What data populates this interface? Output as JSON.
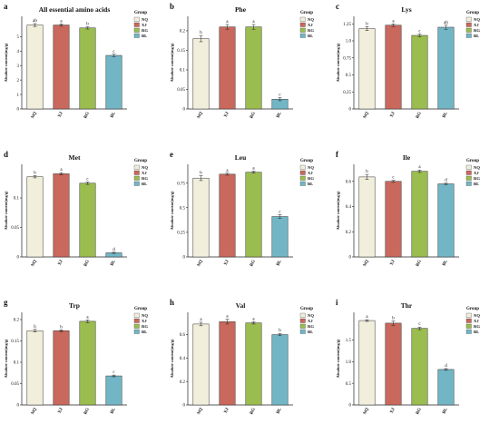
{
  "colors": {
    "NQ": "#f1efdb",
    "XJ": "#c9685c",
    "RG": "#9bbd4f",
    "BL": "#72b6c6"
  },
  "chart_data": [
    {
      "type": "bar",
      "panel": "a",
      "title": "All essential amino acids",
      "categories": [
        "NQ",
        "XJ",
        "RG",
        "BL"
      ],
      "values": [
        5.8,
        5.8,
        5.6,
        3.7
      ],
      "errors": [
        0.1,
        0.08,
        0.08,
        0.08
      ],
      "letters": [
        "ab",
        "a",
        "b",
        "c"
      ],
      "yticks": [
        0,
        1,
        2,
        3,
        4,
        5
      ],
      "ylim": [
        0,
        6.4
      ],
      "ylabel": "Absolute content(mg/g)",
      "legend_title": "Group",
      "legend": [
        "NQ",
        "XJ",
        "RG",
        "BL"
      ]
    },
    {
      "type": "bar",
      "panel": "b",
      "title": "Phe",
      "categories": [
        "NQ",
        "XJ",
        "RG",
        "BL"
      ],
      "values": [
        0.18,
        0.21,
        0.21,
        0.025
      ],
      "errors": [
        0.008,
        0.006,
        0.006,
        0.004
      ],
      "letters": [
        "b",
        "a",
        "a",
        "c"
      ],
      "yticks": [
        "0",
        "0.05",
        "0.1",
        "0.15",
        "0.2"
      ],
      "ylim": [
        0,
        0.237
      ],
      "ylabel": "Absolute content(mg/g)",
      "legend_title": "Group",
      "legend": [
        "NQ",
        "XJ",
        "RG",
        "BL"
      ]
    },
    {
      "type": "bar",
      "panel": "c",
      "title": "Lys",
      "categories": [
        "NQ",
        "XJ",
        "RG",
        "BL"
      ],
      "values": [
        1.18,
        1.23,
        1.08,
        1.2
      ],
      "errors": [
        0.03,
        0.02,
        0.02,
        0.03
      ],
      "letters": [
        "b",
        "a",
        "c",
        "ab"
      ],
      "yticks": [
        "0",
        "0.25",
        "0.5",
        "0.75",
        "1.0",
        "1.25"
      ],
      "ylim": [
        0,
        1.36
      ],
      "ylabel": "Absolute content(mg/g)",
      "legend_title": "Group",
      "legend": [
        "NQ",
        "XJ",
        "RG",
        "BL"
      ]
    },
    {
      "type": "bar",
      "panel": "d",
      "title": "Met",
      "categories": [
        "NQ",
        "XJ",
        "RG",
        "BL"
      ],
      "values": [
        0.136,
        0.141,
        0.125,
        0.007
      ],
      "errors": [
        0.002,
        0.002,
        0.002,
        0.001
      ],
      "letters": [
        "b",
        "a",
        "c",
        "d"
      ],
      "yticks": [
        "0",
        "0.05",
        "0.1"
      ],
      "ylim": [
        0,
        0.157
      ],
      "ylabel": "Absolute content(mg/g)",
      "legend_title": "Group",
      "legend": [
        "NQ",
        "XJ",
        "RG",
        "BL"
      ]
    },
    {
      "type": "bar",
      "panel": "e",
      "title": "Leu",
      "categories": [
        "NQ",
        "XJ",
        "RG",
        "BL"
      ],
      "values": [
        0.8,
        0.84,
        0.86,
        0.41
      ],
      "errors": [
        0.025,
        0.01,
        0.01,
        0.02
      ],
      "letters": [
        "b",
        "a",
        "a",
        "c"
      ],
      "yticks": [
        "0",
        "0.25",
        "0.5",
        "0.75"
      ],
      "ylim": [
        0,
        0.94
      ],
      "ylabel": "Absolute content(mg/g)",
      "legend_title": "Group",
      "legend": [
        "NQ",
        "XJ",
        "RG",
        "BL"
      ]
    },
    {
      "type": "bar",
      "panel": "f",
      "title": "Ile",
      "categories": [
        "NQ",
        "XJ",
        "RG",
        "BL"
      ],
      "values": [
        0.635,
        0.6,
        0.68,
        0.58
      ],
      "errors": [
        0.02,
        0.008,
        0.01,
        0.006
      ],
      "letters": [
        "b",
        "c",
        "a",
        "d"
      ],
      "yticks": [
        "0",
        "0.2",
        "0.4",
        "0.6"
      ],
      "ylim": [
        0,
        0.735
      ],
      "ylabel": "Absolute content(mg/g)",
      "legend_title": "Group",
      "legend": [
        "NQ",
        "XJ",
        "RG",
        "BL"
      ]
    },
    {
      "type": "bar",
      "panel": "g",
      "title": "Trp",
      "categories": [
        "NQ",
        "XJ",
        "RG",
        "BL"
      ],
      "values": [
        0.174,
        0.174,
        0.196,
        0.068
      ],
      "errors": [
        0.003,
        0.002,
        0.003,
        0.002
      ],
      "letters": [
        "b",
        "b",
        "a",
        "c"
      ],
      "yticks": [
        "0",
        "0.05",
        "0.1",
        "0.15",
        "0.2"
      ],
      "ylim": [
        0,
        0.217
      ],
      "ylabel": "Absolute content(mg/g)",
      "legend_title": "Group",
      "legend": [
        "NQ",
        "XJ",
        "RG",
        "BL"
      ]
    },
    {
      "type": "bar",
      "panel": "h",
      "title": "Val",
      "categories": [
        "NQ",
        "XJ",
        "RG",
        "BL"
      ],
      "values": [
        0.69,
        0.71,
        0.7,
        0.6
      ],
      "errors": [
        0.015,
        0.02,
        0.01,
        0.01
      ],
      "letters": [
        "a",
        "a",
        "a",
        "b"
      ],
      "yticks": [
        "0",
        "0.2",
        "0.4",
        "0.6"
      ],
      "ylim": [
        0,
        0.79
      ],
      "ylabel": "Absolute content(mg/g)",
      "legend_title": "Group",
      "legend": [
        "NQ",
        "XJ",
        "RG",
        "BL"
      ]
    },
    {
      "type": "bar",
      "panel": "i",
      "title": "Thr",
      "categories": [
        "NQ",
        "XJ",
        "RG",
        "BL"
      ],
      "values": [
        1.95,
        1.89,
        1.77,
        0.82
      ],
      "errors": [
        0.02,
        0.05,
        0.03,
        0.02
      ],
      "letters": [
        "a",
        "b",
        "c",
        "d"
      ],
      "yticks": [
        "0",
        "0.5",
        "1.0",
        "1.5"
      ],
      "ylim": [
        0,
        2.14
      ],
      "ylabel": "Absolute content(mg/g)",
      "legend_title": "Group",
      "legend": [
        "NQ",
        "XJ",
        "RG",
        "BL"
      ]
    }
  ]
}
